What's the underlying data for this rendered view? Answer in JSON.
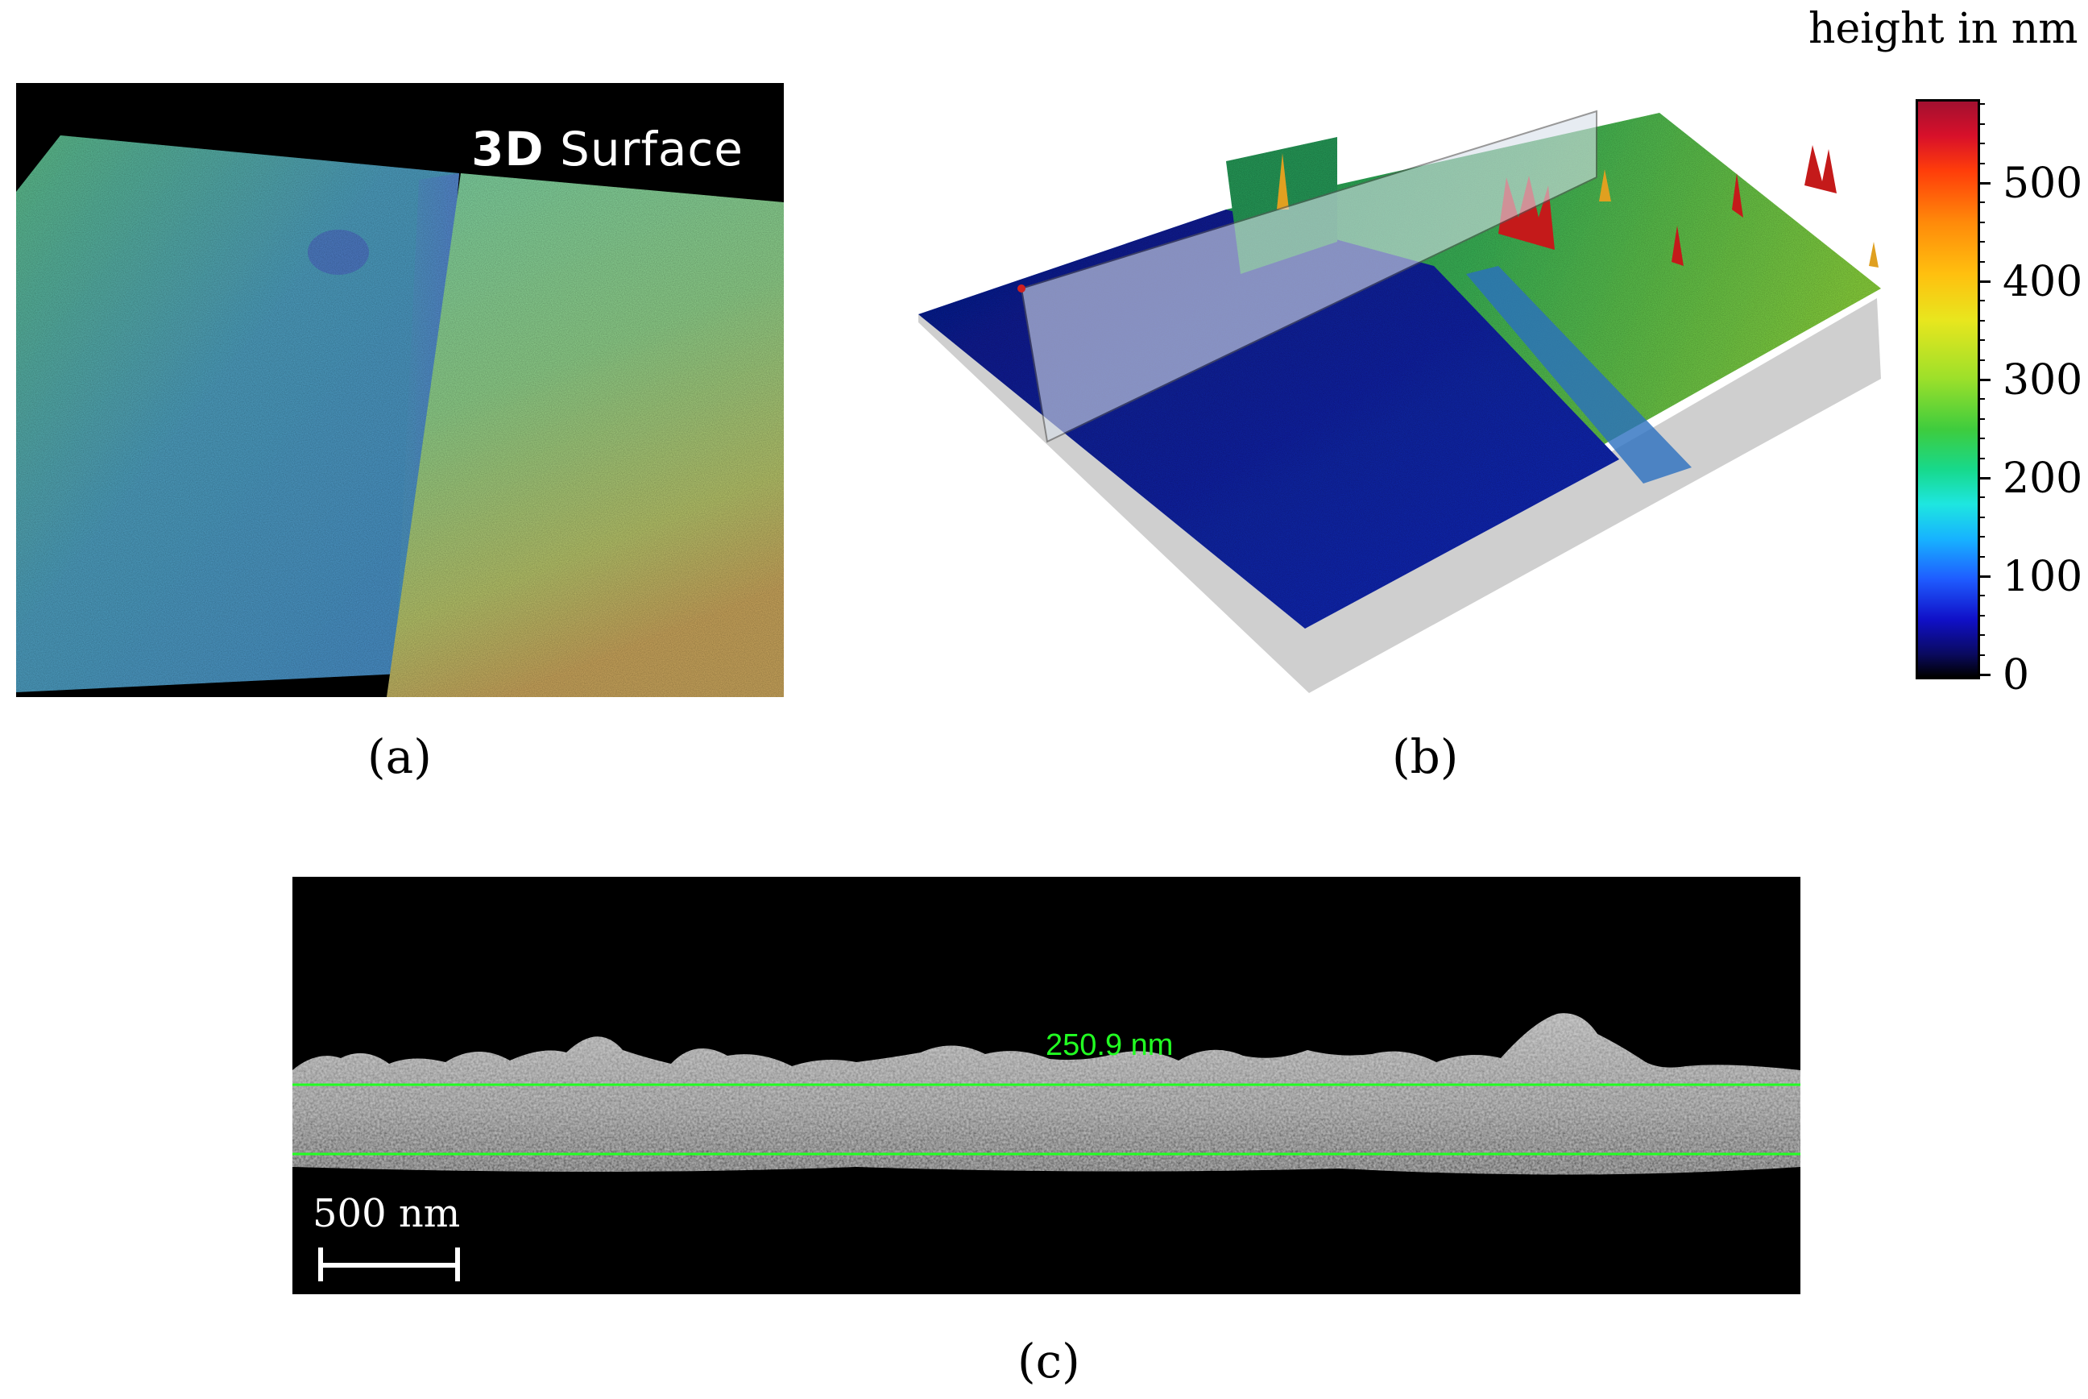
{
  "panel_a": {
    "overlay_prefix": "3D",
    "overlay_suffix": "Surface",
    "caption": "(a)"
  },
  "panel_b": {
    "caption": "(b)"
  },
  "colorbar": {
    "title": "height in nm",
    "ticks": [
      "0",
      "100",
      "200",
      "300",
      "400",
      "500"
    ],
    "colormap": [
      "#000000",
      "#1010c8",
      "#17b3ff",
      "#3ecc3e",
      "#e8e61e",
      "#ff8a0a",
      "#a31030"
    ]
  },
  "panel_c": {
    "measurement": "250.9 nm",
    "scale_bar": "500 nm",
    "caption": "(c)"
  }
}
